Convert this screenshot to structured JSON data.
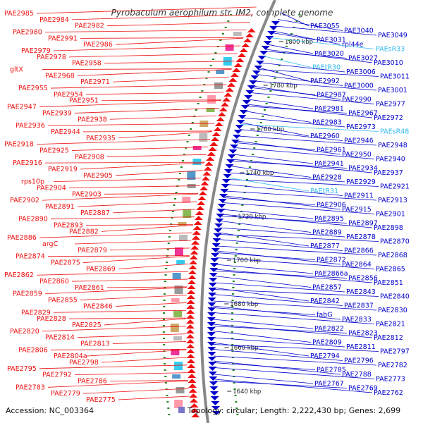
{
  "title": "Pyrobaculum aerophilum str. IM2, complete genome",
  "accession": "Accession: NC_003364",
  "summary": "Topology: circular; Length: 2,222,430 bp; Genes: 2,699",
  "colors": {
    "left": "#ee1111",
    "right": "#0000cc",
    "rna": "#33bbee",
    "backbone": "#888888"
  },
  "kbp_ticks": [
    "1800 kbp",
    "1780 kbp",
    "1760 kbp",
    "1740 kbp",
    "1720 kbp",
    "1700 kbp",
    "1680 kbp",
    "1660 kbp",
    "1640 kbp"
  ],
  "left_labels": [
    "PAE2985",
    "PAE2984",
    "PAE2982",
    "PAE2980",
    "PAE2991",
    "PAE2986",
    "PAE2979",
    "PAE2978",
    "PAE2958",
    "gltX",
    "PAE2968",
    "PAE2971",
    "PAE2955",
    "PAE2954",
    "PAE2951",
    "PAE2947",
    "PAE2939",
    "PAE2938",
    "PAE2936",
    "PAE2944",
    "PAE2935",
    "PAE2918",
    "PAE2925",
    "PAE2908",
    "PAE2916",
    "PAE2919",
    "PAE2905",
    "rps10p",
    "PAE2904",
    "PAE2903",
    "PAE2902",
    "PAE2891",
    "PAE2887",
    "PAE2890",
    "PAE2893",
    "PAE2882",
    "PAE2886",
    "argC",
    "PAE2879",
    "PAE2874",
    "PAE2875",
    "PAE2869",
    "PAE2862",
    "PAE2860",
    "PAE2861",
    "PAE2859",
    "PAE2855",
    "PAE2846",
    "PAE2829",
    "PAE2828",
    "PAE2825",
    "PAE2820",
    "PAE2814",
    "PAE2813",
    "PAE2806",
    "PAE2804a",
    "PAE2798",
    "PAE2795",
    "PAE2792",
    "PAE2786",
    "PAE2783",
    "PAE2779",
    "PAE2775"
  ],
  "right_labels": [
    "PAE3055",
    "PAE3040",
    "PAE3049",
    "PAE3031",
    "rpl44e",
    "PAEsR33",
    "PAE3020",
    "PAE3027",
    "PAE3010",
    "PAEtR30",
    "PAE3006",
    "PAE3011",
    "PAE2992",
    "PAE3000",
    "PAE3001",
    "PAE2987",
    "PAE2990",
    "PAE2977",
    "PAE2981",
    "PAE2967",
    "PAE2972",
    "PAE2983",
    "PAE2973",
    "PAEsR48",
    "PAE2960",
    "PAE2946",
    "PAE2948",
    "PAE2961",
    "PAE2950",
    "PAE2940",
    "PAE2941",
    "PAE2934",
    "PAE2937",
    "PAE2928",
    "PAE2929",
    "PAE2921",
    "PAEtR31",
    "PAE2911",
    "PAE2913",
    "PAE2906",
    "PAE2915",
    "PAE2901",
    "PAE2895",
    "PAE2897",
    "PAE2898",
    "PAE2889",
    "PAE2878",
    "PAE2870",
    "PAE2877",
    "PAE2866",
    "PAE2868",
    "PAE2872",
    "PAE2864",
    "PAE2865",
    "PAE2866a",
    "PAE2856",
    "PAE2851",
    "PAE2857",
    "PAE2843",
    "PAE2840",
    "PAE2842",
    "PAE2837",
    "PAE2830",
    "fabG",
    "PAE2833",
    "PAE2821",
    "PAE2822",
    "PAE2823",
    "PAE2812",
    "PAE2809",
    "PAE2811",
    "PAE2797",
    "PAE2794",
    "PAE2796",
    "PAE2782",
    "PAE2785",
    "PAE2788",
    "PAE2773",
    "PAE2767",
    "PAE2769",
    "PAE2762"
  ]
}
